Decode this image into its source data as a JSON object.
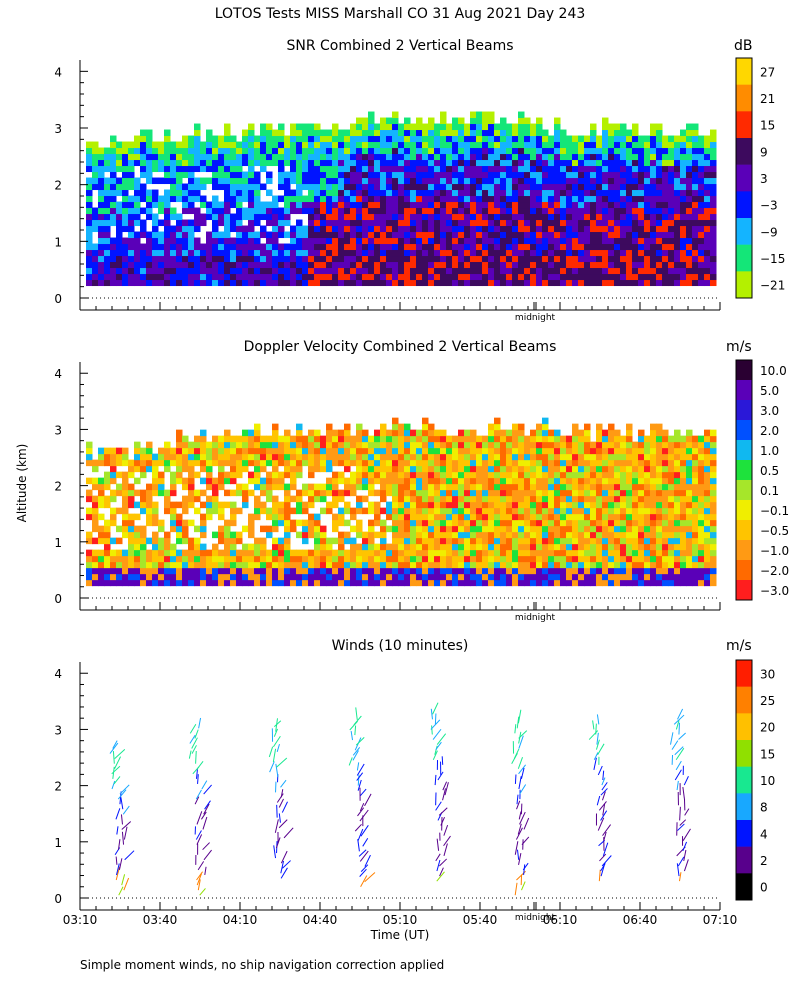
{
  "figure_title": "LOTOS Tests MISS Marshall CO  31 Aug 2021 Day 243",
  "y_axis_label": "Altitude (km)",
  "x_axis_label": "Time (UT)",
  "footnote": "Simple moment winds, no ship navigation correction applied",
  "midnight_label": "midnight",
  "panels": {
    "snr": {
      "title": "SNR Combined 2 Vertical Beams",
      "unit": "dB",
      "colorbar_labels": [
        "27",
        "21",
        "15",
        "9",
        "3",
        "−3",
        "−9",
        "−15",
        "−21"
      ],
      "colors": [
        "#ffd700",
        "#ff8c00",
        "#ff2a00",
        "#3d0a5e",
        "#5a00b8",
        "#0014ff",
        "#14b4ff",
        "#14e678",
        "#b4f000"
      ]
    },
    "doppler": {
      "title": "Doppler Velocity Combined 2 Vertical Beams",
      "unit": "m/s",
      "colorbar_labels": [
        "10.0",
        "5.0",
        "3.0",
        "2.0",
        "1.0",
        "0.5",
        "0.1",
        "−0.1",
        "−0.5",
        "−1.0",
        "−2.0",
        "−3.0"
      ],
      "colors": [
        "#2a0032",
        "#5a00b8",
        "#2a18d8",
        "#0050ff",
        "#10b8f0",
        "#1ee23c",
        "#a6e62a",
        "#f0ee00",
        "#ffc400",
        "#ff9a14",
        "#ff6a00",
        "#ff1e1e"
      ]
    },
    "winds": {
      "title": "Winds (10 minutes)",
      "unit": "m/s",
      "colorbar_labels": [
        "30",
        "25",
        "20",
        "15",
        "10",
        "8",
        "4",
        "2",
        "0"
      ],
      "colors": [
        "#ff1e00",
        "#ff8000",
        "#ffc000",
        "#90e000",
        "#18e890",
        "#18a8ff",
        "#0014ff",
        "#58008c",
        "#000000"
      ]
    }
  },
  "chart_data": [
    {
      "type": "heatmap",
      "title": "SNR Combined 2 Vertical Beams",
      "units": "dB",
      "ylabel": "Altitude (km)",
      "ylim": [
        0,
        4
      ],
      "yticks": [
        0,
        1,
        2,
        3,
        4
      ],
      "color_levels": [
        27,
        21,
        15,
        9,
        3,
        -3,
        -9,
        -15,
        -21
      ],
      "profiles": [
        {
          "t": "03:10",
          "top_km": 2.6
        },
        {
          "t": "03:40",
          "top_km": 2.8
        },
        {
          "t": "04:10",
          "top_km": 2.9
        },
        {
          "t": "04:40",
          "top_km": 3.0
        },
        {
          "t": "05:10",
          "top_km": 3.1
        },
        {
          "t": "05:40",
          "top_km": 3.1
        },
        {
          "t": "06:10",
          "top_km": 3.0
        },
        {
          "t": "06:40",
          "top_km": 2.9
        },
        {
          "t": "07:10",
          "top_km": 2.9
        }
      ]
    },
    {
      "type": "heatmap",
      "title": "Doppler Velocity Combined 2 Vertical Beams",
      "units": "m/s",
      "ylabel": "Altitude (km)",
      "ylim": [
        0,
        4
      ],
      "yticks": [
        0,
        1,
        2,
        3,
        4
      ],
      "color_levels": [
        10.0,
        5.0,
        3.0,
        2.0,
        1.0,
        0.5,
        0.1,
        -0.1,
        -0.5,
        -1.0,
        -2.0,
        -3.0
      ],
      "profiles": [
        {
          "t": "03:10",
          "top_km": 2.5
        },
        {
          "t": "03:40",
          "top_km": 2.7
        },
        {
          "t": "04:10",
          "top_km": 2.9
        },
        {
          "t": "04:40",
          "top_km": 3.0
        },
        {
          "t": "05:10",
          "top_km": 3.05
        },
        {
          "t": "05:40",
          "top_km": 3.0
        },
        {
          "t": "06:10",
          "top_km": 2.95
        },
        {
          "t": "06:40",
          "top_km": 2.9
        },
        {
          "t": "07:10",
          "top_km": 2.95
        }
      ]
    },
    {
      "type": "scatter",
      "title": "Winds (10 minutes)",
      "units": "m/s",
      "xlabel": "Time (UT)",
      "ylabel": "Altitude (km)",
      "xticks": [
        "03:10",
        "03:40",
        "04:10",
        "04:40",
        "05:10",
        "05:40",
        "06:10",
        "06:40",
        "07:10"
      ],
      "ylim": [
        0,
        4
      ],
      "yticks": [
        0,
        1,
        2,
        3,
        4
      ],
      "color_levels": [
        30,
        25,
        20,
        15,
        10,
        8,
        4,
        2,
        0
      ],
      "profiles": [
        {
          "time": "03:25",
          "bottom_km": 0.0,
          "top_km": 2.7
        },
        {
          "time": "03:55",
          "bottom_km": 0.0,
          "top_km": 3.05
        },
        {
          "time": "04:25",
          "bottom_km": 0.3,
          "top_km": 3.05
        },
        {
          "time": "04:55",
          "bottom_km": 0.15,
          "top_km": 3.2
        },
        {
          "time": "05:25",
          "bottom_km": 0.25,
          "top_km": 3.3
        },
        {
          "time": "05:55",
          "bottom_km": 0.0,
          "top_km": 3.15
        },
        {
          "time": "06:25",
          "bottom_km": 0.25,
          "top_km": 3.1
        },
        {
          "time": "06:55",
          "bottom_km": 0.25,
          "top_km": 3.2
        }
      ]
    }
  ]
}
